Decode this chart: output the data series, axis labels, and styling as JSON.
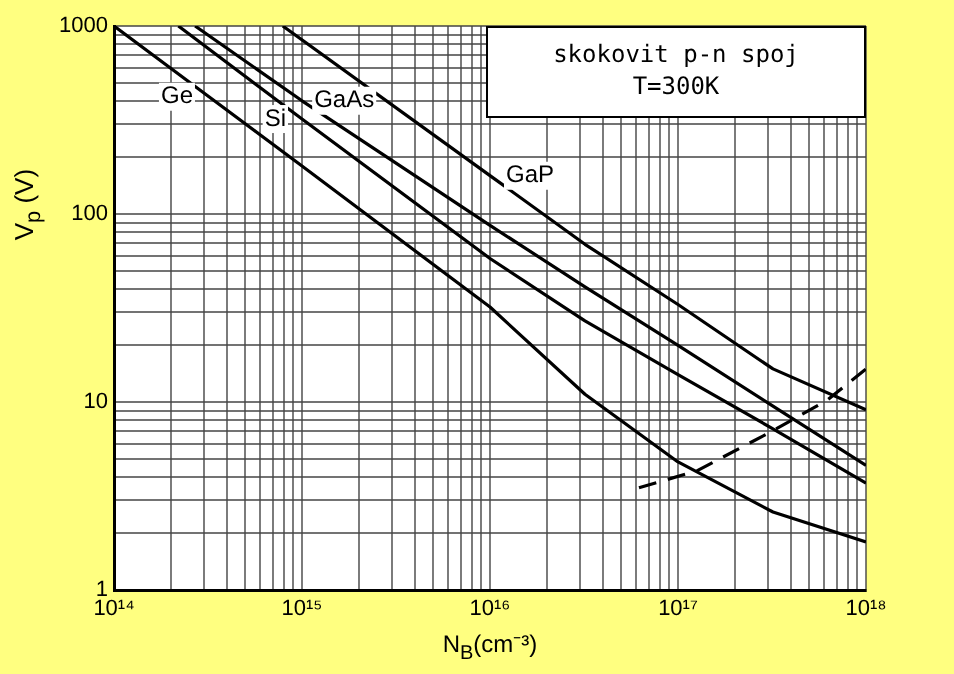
{
  "chart_data": {
    "type": "line",
    "xlabel": "N$_{B}$(cm⁻³)",
    "ylabel": "V$_{p}$ (V)",
    "annotations": [
      "skokovit p-n spoj",
      "T=300K"
    ],
    "log": "xy",
    "grid": true,
    "legend": false,
    "marker": "none",
    "xlim": [
      100000000000000.0,
      1e+18
    ],
    "ylim": [
      1,
      1000
    ],
    "xticks": [
      {
        "value": 100000000000000.0,
        "label": "10¹⁴"
      },
      {
        "value": 200000000000000.0,
        "label": null
      },
      {
        "value": 300000000000000.0,
        "label": null
      },
      {
        "value": 400000000000000.0,
        "label": null
      },
      {
        "value": 500000000000000.0,
        "label": null
      },
      {
        "value": 600000000000000.0,
        "label": null
      },
      {
        "value": 700000000000000.0,
        "label": null
      },
      {
        "value": 800000000000000.0,
        "label": null
      },
      {
        "value": 900000000000000.0,
        "label": null
      },
      {
        "value": 1000000000000000.0,
        "label": "10¹⁵"
      },
      {
        "value": 2000000000000000.0,
        "label": null
      },
      {
        "value": 3000000000000000.0,
        "label": null
      },
      {
        "value": 4000000000000000.0,
        "label": null
      },
      {
        "value": 5000000000000000.0,
        "label": null
      },
      {
        "value": 6000000000000000.0,
        "label": null
      },
      {
        "value": 7000000000000000.0,
        "label": null
      },
      {
        "value": 8000000000000000.0,
        "label": null
      },
      {
        "value": 9000000000000000.0,
        "label": null
      },
      {
        "value": 1e+16,
        "label": "10¹⁶"
      },
      {
        "value": 2e+16,
        "label": null
      },
      {
        "value": 3e+16,
        "label": null
      },
      {
        "value": 4e+16,
        "label": null
      },
      {
        "value": 5e+16,
        "label": null
      },
      {
        "value": 6e+16,
        "label": null
      },
      {
        "value": 7e+16,
        "label": null
      },
      {
        "value": 8e+16,
        "label": null
      },
      {
        "value": 9e+16,
        "label": null
      },
      {
        "value": 1e+17,
        "label": "10¹⁷"
      },
      {
        "value": 2e+17,
        "label": null
      },
      {
        "value": 3e+17,
        "label": null
      },
      {
        "value": 4e+17,
        "label": null
      },
      {
        "value": 5e+17,
        "label": null
      },
      {
        "value": 6e+17,
        "label": null
      },
      {
        "value": 7e+17,
        "label": null
      },
      {
        "value": 8e+17,
        "label": null
      },
      {
        "value": 9e+17,
        "label": null
      },
      {
        "value": 1e+18,
        "label": "10¹⁸"
      }
    ],
    "yticks": [
      1,
      {
        "value": 2,
        "label": null
      },
      {
        "value": 3,
        "label": null
      },
      {
        "value": 4,
        "label": null
      },
      {
        "value": 5,
        "label": null
      },
      {
        "value": 6,
        "label": null
      },
      {
        "value": 7,
        "label": null
      },
      {
        "value": 8,
        "label": null
      },
      {
        "value": 9,
        "label": null
      },
      10,
      {
        "value": 20,
        "label": null
      },
      {
        "value": 30,
        "label": null
      },
      {
        "value": 40,
        "label": null
      },
      {
        "value": 50,
        "label": null
      },
      {
        "value": 60,
        "label": null
      },
      {
        "value": 70,
        "label": null
      },
      {
        "value": 80,
        "label": null
      },
      {
        "value": 90,
        "label": null
      },
      100,
      {
        "value": 200,
        "label": null
      },
      {
        "value": 300,
        "label": null
      },
      {
        "value": 400,
        "label": null
      },
      {
        "value": 500,
        "label": null
      },
      {
        "value": 600,
        "label": null
      },
      {
        "value": 700,
        "label": null
      },
      {
        "value": 800,
        "label": null
      },
      {
        "value": 900,
        "label": null
      },
      1000
    ],
    "series": [
      {
        "name": "GaAs",
        "color": "#000000",
        "x": [
          270000000000000.0,
          1000000000000000.0,
          1e+16,
          3.2e+16,
          1e+17,
          3.2e+17,
          1e+18
        ],
        "values": [
          1000,
          400,
          87,
          41,
          20,
          9.5,
          4.6
        ]
      },
      {
        "name": "Si",
        "color": "#000000",
        "x": [
          220000000000000.0,
          1000000000000000.0,
          1e+16,
          3.2e+16,
          1e+17,
          3.2e+17,
          1e+18
        ],
        "values": [
          1000,
          320,
          58,
          27,
          14,
          7.2,
          3.7
        ]
      },
      {
        "name": "GaP",
        "color": "#000000",
        "x": [
          790000000000000.0,
          1e+16,
          3.2e+16,
          1e+17,
          3.2e+17,
          1e+18
        ],
        "values": [
          1000,
          160,
          69,
          33,
          15,
          9.1
        ]
      },
      {
        "name": "Ge",
        "color": "#000000",
        "x": [
          100000000000000.0,
          320000000000000.0,
          1000000000000000.0,
          1e+16,
          3.2e+16,
          1e+17,
          3.2e+17,
          1e+18
        ],
        "values": [
          1000,
          420,
          180,
          32,
          11,
          4.8,
          2.6,
          1.8
        ]
      },
      {
        "color": "#000000",
        "line_style": "dashed",
        "x": [
          6.2e+16,
          1.26e+17,
          3e+17,
          6.2e+17,
          1e+18
        ],
        "values": [
          3.5,
          4.3,
          6.8,
          10.2,
          15
        ]
      }
    ]
  }
}
